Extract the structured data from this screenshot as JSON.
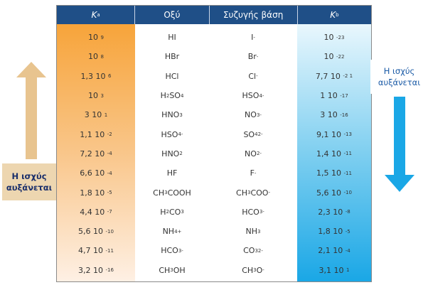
{
  "header": {
    "ka": "K",
    "ka_sub": "a",
    "acid": "Οξύ",
    "base": "Συζυγής βάση",
    "kb": "K",
    "kb_sub": "b"
  },
  "labels": {
    "left_line1": "Η ισχύς",
    "left_line2": "αυξάνεται",
    "right_line1": "Η ισχύς",
    "right_line2": "αυξάνεται"
  },
  "rows": [
    {
      "ka": "10",
      "ka_exp": "9",
      "acid": "HI",
      "acid_sub": "",
      "acid_sup": "",
      "acid_rest": "",
      "base": "I",
      "base_sub": "",
      "base_sup": "-",
      "base_rest": "",
      "kb": "10",
      "kb_exp": "-23"
    },
    {
      "ka": "10",
      "ka_exp": "8",
      "acid": "HBr",
      "acid_sub": "",
      "acid_sup": "",
      "acid_rest": "",
      "base": "Br",
      "base_sub": "",
      "base_sup": "-",
      "base_rest": "",
      "kb": "10",
      "kb_exp": "-22"
    },
    {
      "ka": "1,3 10",
      "ka_exp": "6",
      "acid": "HCl",
      "acid_sub": "",
      "acid_sup": "",
      "acid_rest": "",
      "base": "Cl",
      "base_sub": "",
      "base_sup": "-",
      "base_rest": "",
      "kb": "7,7 10",
      "kb_exp": "-2 1"
    },
    {
      "ka": "10",
      "ka_exp": "3",
      "acid": "H",
      "acid_sub": "2",
      "acid_sup": "",
      "acid_rest": "SO",
      "acid_sub2": "4",
      "base": "HSO",
      "base_sub": "4",
      "base_sup": "-",
      "base_rest": "",
      "kb": "1 10",
      "kb_exp": "-17"
    },
    {
      "ka": "3 10",
      "ka_exp": "1",
      "acid": "HNO",
      "acid_sub": "3",
      "acid_sup": "",
      "acid_rest": "",
      "base": "NO",
      "base_sub": "3",
      "base_sup": "-",
      "base_rest": "",
      "kb": "3 10",
      "kb_exp": "-16"
    },
    {
      "ka": "1,1 10",
      "ka_exp": "-2",
      "acid": "HSO",
      "acid_sub": "4",
      "acid_sup": "-",
      "acid_rest": "",
      "base": "SO",
      "base_sub": "4",
      "base_sup": "2-",
      "base_rest": "",
      "kb": "9,1 10",
      "kb_exp": "-13"
    },
    {
      "ka": "7,2 10",
      "ka_exp": "-4",
      "acid": "HNO",
      "acid_sub": "2",
      "acid_sup": "",
      "acid_rest": "",
      "base": "NO",
      "base_sub": "2",
      "base_sup": "-",
      "base_rest": "",
      "kb": "1,4 10",
      "kb_exp": "-11"
    },
    {
      "ka": "6,6 10",
      "ka_exp": "-4",
      "acid": "HF",
      "acid_sub": "",
      "acid_sup": "",
      "acid_rest": "",
      "base": "F",
      "base_sub": "",
      "base_sup": "-",
      "base_rest": "",
      "kb": "1,5 10",
      "kb_exp": "-11"
    },
    {
      "ka": "1,8 10",
      "ka_exp": "-5",
      "acid": "CH",
      "acid_sub": "3",
      "acid_sup": "",
      "acid_rest": "COOH",
      "base": "CH",
      "base_sub": "3",
      "base_sup": "",
      "base_rest": "COO",
      "base_sup2": "-",
      "kb": "5,6 10",
      "kb_exp": "-10"
    },
    {
      "ka": "4,4 10",
      "ka_exp": "-7",
      "acid": "H",
      "acid_sub": "2",
      "acid_sup": "",
      "acid_rest": "CO",
      "acid_sub2": "3",
      "base": "HCO",
      "base_sub": "3",
      "base_sup": "-",
      "base_rest": "",
      "kb": "2,3 10",
      "kb_exp": "-8"
    },
    {
      "ka": "5,6 10",
      "ka_exp": "-10",
      "acid": "NH",
      "acid_sub": "4",
      "acid_sup": "+",
      "acid_rest": "",
      "base": "NH",
      "base_sub": "3",
      "base_sup": "",
      "base_rest": "",
      "kb": "1,8 10",
      "kb_exp": "-5"
    },
    {
      "ka": "4,7 10",
      "ka_exp": "-11",
      "acid": "HCO",
      "acid_sub": "3",
      "acid_sup": "-",
      "acid_rest": "",
      "base": "CO",
      "base_sub": "3",
      "base_sup": "2-",
      "base_rest": "",
      "kb": "2,1 10",
      "kb_exp": "-4"
    },
    {
      "ka": "3,2 10",
      "ka_exp": "-16",
      "acid": "CH",
      "acid_sub": "3",
      "acid_sup": "",
      "acid_rest": "OH",
      "base": "CH",
      "base_sub": "3",
      "base_sup": "",
      "base_rest": "O",
      "base_sup2": "-",
      "kb": "3,1 10",
      "kb_exp": "1"
    }
  ],
  "colors": {
    "header_bg": "#1f4f87",
    "orange": "#f7a43a",
    "blue": "#1aa7e6",
    "arrow_tan": "#e8c48f"
  }
}
